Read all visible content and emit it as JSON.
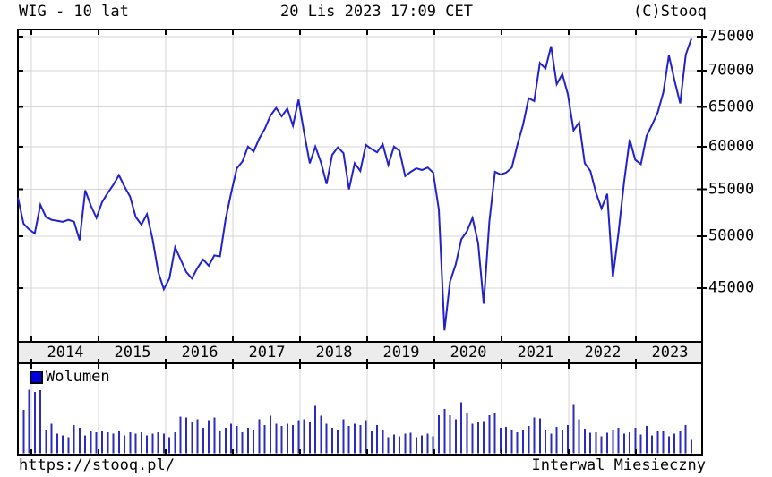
{
  "header": {
    "title": "WIG - 10 lat",
    "datetime": "20 Lis 2023 17:09 CET",
    "copyright": "(C)Stooq"
  },
  "footer": {
    "url": "https://stooq.pl/",
    "interval": "Interwal Miesieczny"
  },
  "legend": {
    "volume_label": "Wolumen"
  },
  "colors": {
    "line": "#2222cc",
    "volume_bar": "#2b2bbd",
    "legend_square": "#0000dd",
    "grid": "#d6d6d6",
    "frame": "#000000",
    "strip_bg": "#ececec",
    "background": "#ffffff"
  },
  "chart_data": {
    "type": "line",
    "title": "WIG - 10 lat",
    "instrument": "WIG",
    "interval": "monthly",
    "x_start": "2013-11",
    "x_end": "2023-11",
    "y_scale": "log",
    "y_range": [
      40350,
      76100
    ],
    "y_ticks": [
      45000,
      50000,
      55000,
      60000,
      65000,
      70000,
      75000
    ],
    "years": [
      "2014",
      "2015",
      "2016",
      "2017",
      "2018",
      "2019",
      "2020",
      "2021",
      "2022",
      "2023"
    ],
    "grid": true,
    "series": [
      {
        "name": "WIG",
        "values": [
          54100,
          51300,
          50700,
          50300,
          53300,
          52000,
          51700,
          51600,
          51500,
          51700,
          51500,
          49600,
          54900,
          53200,
          51900,
          53600,
          54600,
          55500,
          56600,
          55300,
          54200,
          52000,
          51200,
          52300,
          49700,
          46500,
          44900,
          45900,
          48900,
          47700,
          46500,
          45900,
          46900,
          47700,
          47100,
          48100,
          48000,
          51750,
          54600,
          57400,
          58200,
          60000,
          59400,
          61000,
          62200,
          63900,
          64900,
          63800,
          64800,
          62600,
          66000,
          61700,
          58000,
          60000,
          58100,
          55600,
          59000,
          59900,
          59200,
          55000,
          58000,
          57100,
          60200,
          59700,
          59300,
          60300,
          57800,
          60000,
          59500,
          56500,
          57000,
          57400,
          57200,
          57500,
          56900,
          52800,
          41300,
          45600,
          47200,
          49700,
          50500,
          51900,
          49300,
          43600,
          51500,
          57000,
          56700,
          56900,
          57500,
          60200,
          62700,
          66200,
          65800,
          71100,
          70300,
          73550,
          68100,
          69500,
          66700,
          62000,
          63000,
          58000,
          57100,
          54600,
          52900,
          54500,
          46000,
          50300,
          55800,
          60900,
          58400,
          57900,
          61300,
          62700,
          64300,
          67000,
          72200,
          68600,
          65500,
          72300,
          74700
        ]
      }
    ],
    "volume": {
      "name": "Wolumen",
      "relative_heights": [
        0.61,
        0.51,
        0.75,
        0.72,
        0.74,
        0.28,
        0.35,
        0.23,
        0.21,
        0.19,
        0.33,
        0.3,
        0.21,
        0.26,
        0.25,
        0.26,
        0.25,
        0.23,
        0.26,
        0.21,
        0.25,
        0.23,
        0.25,
        0.21,
        0.23,
        0.25,
        0.23,
        0.19,
        0.25,
        0.43,
        0.42,
        0.37,
        0.4,
        0.3,
        0.39,
        0.42,
        0.26,
        0.3,
        0.35,
        0.32,
        0.25,
        0.3,
        0.28,
        0.4,
        0.33,
        0.44,
        0.35,
        0.32,
        0.35,
        0.33,
        0.39,
        0.4,
        0.37,
        0.56,
        0.44,
        0.35,
        0.3,
        0.28,
        0.4,
        0.32,
        0.35,
        0.33,
        0.39,
        0.26,
        0.33,
        0.28,
        0.19,
        0.22,
        0.2,
        0.23,
        0.24,
        0.19,
        0.21,
        0.23,
        0.2,
        0.45,
        0.52,
        0.45,
        0.4,
        0.6,
        0.47,
        0.35,
        0.37,
        0.38,
        0.45,
        0.47,
        0.3,
        0.31,
        0.28,
        0.25,
        0.27,
        0.32,
        0.42,
        0.41,
        0.27,
        0.23,
        0.31,
        0.27,
        0.33,
        0.58,
        0.4,
        0.29,
        0.24,
        0.25,
        0.2,
        0.24,
        0.27,
        0.3,
        0.23,
        0.25,
        0.3,
        0.22,
        0.32,
        0.21,
        0.26,
        0.26,
        0.2,
        0.23,
        0.26,
        0.33,
        0.16
      ]
    }
  }
}
